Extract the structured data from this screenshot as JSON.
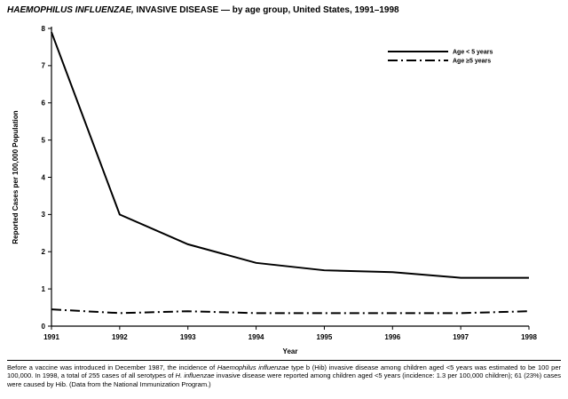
{
  "title": {
    "italic": "HAEMOPHILUS INFLUENZAE,",
    "rest": " INVASIVE DISEASE — by age group, United States, 1991–1998"
  },
  "chart_data": {
    "type": "line",
    "x": [
      1991,
      1992,
      1993,
      1994,
      1995,
      1996,
      1997,
      1998
    ],
    "series": [
      {
        "name": "Age < 5 years",
        "style": "solid",
        "values": [
          7.9,
          3.0,
          2.2,
          1.7,
          1.5,
          1.45,
          1.3,
          1.3
        ]
      },
      {
        "name": "Age ≥5 years",
        "style": "dash-dot",
        "values": [
          0.45,
          0.35,
          0.4,
          0.35,
          0.35,
          0.35,
          0.35,
          0.4
        ]
      }
    ],
    "xlabel": "Year",
    "ylabel": "Reported Cases per 100,000 Population",
    "ylim": [
      0,
      8
    ],
    "yticks": [
      0,
      1,
      2,
      3,
      4,
      5,
      6,
      7,
      8
    ],
    "grid": false,
    "legend_position": "top-right",
    "line_color": "#000000",
    "background": "#ffffff"
  },
  "footnote_segments": [
    {
      "text": "Before a vaccine was introduced in December 1987, the incidence of ",
      "italic": false
    },
    {
      "text": "Haemophilus influenzae",
      "italic": true
    },
    {
      "text": " type b (Hib) invasive disease among children aged <5 years was estimated to be 100 per 100,000. In 1998, a total of 255 cases of all serotypes of ",
      "italic": false
    },
    {
      "text": "H. influenzae",
      "italic": true
    },
    {
      "text": " invasive disease were reported among children aged <5 years (incidence: 1.3 per 100,000 children); 61 (23%) cases were caused by Hib. (Data from the National Immunization Program.)",
      "italic": false
    }
  ]
}
